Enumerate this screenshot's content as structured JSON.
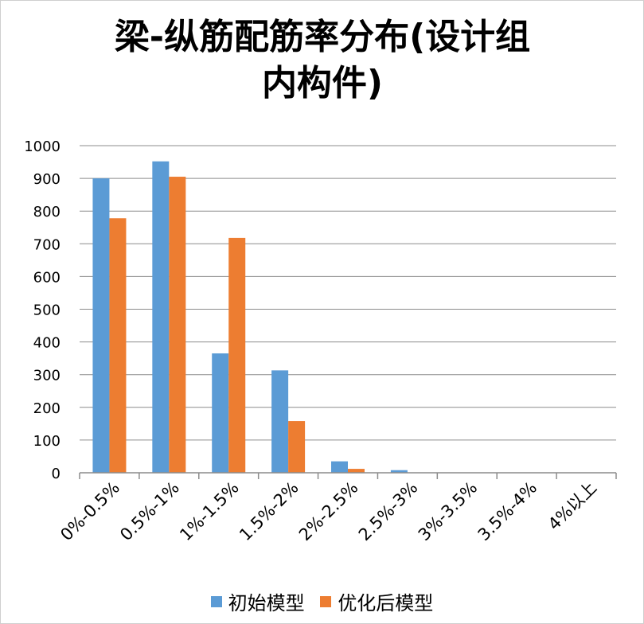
{
  "chart_data": {
    "type": "bar",
    "title_line1": "梁-纵筋配筋率分布(设计组",
    "title_line2": "内构件)",
    "categories": [
      "0%-0.5%",
      "0.5%-1%",
      "1%-1.5%",
      "1.5%-2%",
      "2%-2.5%",
      "2.5%-3%",
      "3%-3.5%",
      "3.5%-4%",
      "4%以上"
    ],
    "series": [
      {
        "name": "初始模型",
        "color": "#5b9bd5",
        "values": [
          900,
          952,
          365,
          313,
          35,
          8,
          0,
          0,
          0
        ]
      },
      {
        "name": "优化后模型",
        "color": "#ed7d31",
        "values": [
          778,
          905,
          718,
          158,
          12,
          0,
          0,
          0,
          0
        ]
      }
    ],
    "ylim": [
      0,
      1000
    ],
    "yticks": [
      0,
      100,
      200,
      300,
      400,
      500,
      600,
      700,
      800,
      900,
      1000
    ],
    "grid": true,
    "legend_position": "bottom"
  }
}
